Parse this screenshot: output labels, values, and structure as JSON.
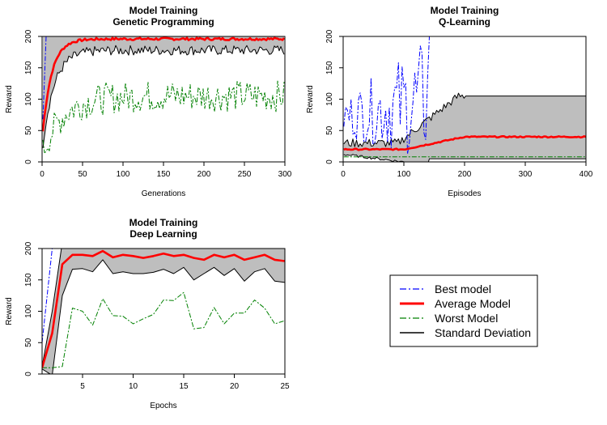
{
  "chart_data": [
    {
      "type": "line",
      "title": "Model Training",
      "subtitle": "Genetic Programming",
      "xlabel": "Generations",
      "ylabel": "Reward",
      "xlim": [
        0,
        300
      ],
      "ylim": [
        0,
        200
      ],
      "x_ticks": [
        0,
        50,
        100,
        150,
        200,
        250,
        300
      ],
      "y_ticks": [
        0,
        50,
        100,
        150,
        200
      ],
      "series_params": {
        "x_start": 1,
        "x_end": 300,
        "x_step": 2,
        "best": {
          "start": 35,
          "plateau": 200,
          "rise_len": 5
        },
        "avg": {
          "start": 35,
          "plateau": 196,
          "rate": 0.09,
          "noise": 2
        },
        "sd_low": {
          "start": 18,
          "plateau": 178,
          "rate": 0.07,
          "noise": 8
        },
        "worst": {
          "start": 12,
          "plateau": 105,
          "rate": 0.04,
          "noise": 25
        }
      },
      "series": [
        {
          "name": "Best model"
        },
        {
          "name": "Average Model"
        },
        {
          "name": "Worst Model"
        },
        {
          "name": "Standard Deviation"
        }
      ],
      "grid": false
    },
    {
      "type": "line",
      "title": "Model Training",
      "subtitle": "Q-Learning",
      "xlabel": "Episodes",
      "ylabel": "Reward",
      "xlim": [
        0,
        400
      ],
      "ylim": [
        0,
        200
      ],
      "x_ticks": [
        0,
        100,
        200,
        300,
        400
      ],
      "y_ticks": [
        0,
        50,
        100,
        150,
        200
      ],
      "series_params": {
        "x_start": 1,
        "x_end": 400,
        "x_step": 3,
        "best": {
          "noisy_until": 140,
          "start": 60,
          "plateau": 200
        },
        "avg": {
          "start": 20,
          "plateau": 40,
          "rise_from": 100,
          "rise_to": 200
        },
        "sd_high": {
          "start": 30,
          "plateau": 105,
          "rise_from": 90,
          "rise_to": 190
        },
        "sd_low": {
          "start": 12,
          "end_at": 140
        },
        "worst": {
          "value": 8
        }
      },
      "series": [
        {
          "name": "Best model"
        },
        {
          "name": "Average Model"
        },
        {
          "name": "Worst Model"
        },
        {
          "name": "Standard Deviation"
        }
      ],
      "grid": false
    },
    {
      "type": "line",
      "title": "Model Training",
      "subtitle": "Deep Learning",
      "xlabel": "Epochs",
      "ylabel": "Reward",
      "xlim": [
        1,
        25
      ],
      "ylim": [
        0,
        200
      ],
      "x_ticks": [
        5,
        10,
        15,
        20,
        25
      ],
      "y_ticks": [
        0,
        50,
        100,
        150,
        200
      ],
      "x": [
        1,
        2,
        3,
        4,
        5,
        6,
        7,
        8,
        9,
        10,
        11,
        12,
        13,
        14,
        15,
        16,
        17,
        18,
        19,
        20,
        21,
        22,
        23,
        24,
        25
      ],
      "series": [
        {
          "name": "Best model",
          "values": [
            50,
            200,
            200,
            200,
            200,
            200,
            200,
            200,
            200,
            200,
            200,
            200,
            200,
            200,
            200,
            200,
            200,
            200,
            200,
            200,
            200,
            200,
            200,
            200,
            200
          ]
        },
        {
          "name": "Average Model",
          "values": [
            10,
            65,
            175,
            190,
            190,
            188,
            196,
            186,
            190,
            188,
            185,
            188,
            192,
            188,
            190,
            185,
            182,
            190,
            186,
            190,
            182,
            186,
            190,
            182,
            180
          ]
        },
        {
          "name": "Worst Model",
          "values": [
            10,
            10,
            12,
            105,
            100,
            78,
            120,
            93,
            92,
            80,
            88,
            95,
            118,
            117,
            130,
            72,
            74,
            106,
            80,
            97,
            97,
            118,
            105,
            80,
            85
          ]
        },
        {
          "name": "SD upper",
          "values": [
            12,
            100,
            210,
            210,
            210,
            210,
            210,
            210,
            210,
            210,
            210,
            210,
            210,
            210,
            210,
            210,
            210,
            210,
            210,
            210,
            210,
            210,
            210,
            210,
            210
          ]
        },
        {
          "name": "SD lower",
          "values": [
            8,
            -2,
            125,
            167,
            168,
            163,
            182,
            160,
            163,
            160,
            160,
            162,
            167,
            160,
            170,
            150,
            160,
            170,
            157,
            168,
            148,
            163,
            168,
            148,
            146
          ]
        }
      ],
      "grid": false
    }
  ],
  "legend": {
    "items": [
      {
        "label": "Best model",
        "color": "#0000ff",
        "dash": "8 3 2 3",
        "width": 1.2
      },
      {
        "label": "Average Model",
        "color": "#ff0000",
        "dash": "",
        "width": 3
      },
      {
        "label": "Worst Model",
        "color": "#008000",
        "dash": "8 3 2 3",
        "width": 1.2
      },
      {
        "label": "Standard Deviation",
        "color": "#000000",
        "dash": "",
        "width": 1.5
      }
    ]
  },
  "colors": {
    "band": "#bebebe",
    "best": "#0000ff",
    "avg": "#ff0000",
    "worst": "#008000",
    "sd": "#000000"
  }
}
